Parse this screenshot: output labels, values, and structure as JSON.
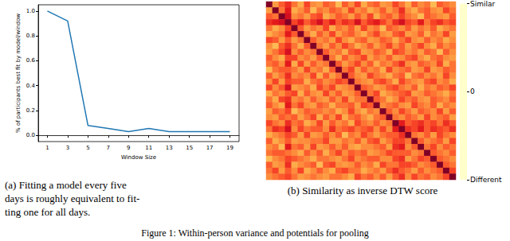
{
  "chart_data": [
    {
      "type": "line",
      "x": [
        1,
        3,
        5,
        7,
        9,
        11,
        13,
        15,
        17,
        19
      ],
      "values": [
        1.0,
        0.92,
        0.08,
        0.055,
        0.03,
        0.055,
        0.03,
        0.03,
        0.03,
        0.03
      ],
      "color": "#1f77b4",
      "xlim": [
        0.1,
        19.9
      ],
      "ylim": [
        -0.05,
        1.05
      ],
      "xticks": [
        1,
        3,
        5,
        7,
        9,
        11,
        13,
        15,
        17,
        19
      ],
      "yticks": [
        {
          "value": 0,
          "label": "0.0"
        },
        {
          "value": 0.2,
          "label": "0.2"
        },
        {
          "value": 0.4,
          "label": "0.4"
        },
        {
          "value": 0.6,
          "label": "0.6"
        },
        {
          "value": 0.8,
          "label": "0.8"
        },
        {
          "value": 1,
          "label": "1.0"
        }
      ],
      "x_label": "Window Size",
      "y_label": "% of participants best fit by model/window",
      "grid": false,
      "caption": [
        "(a) Fitting a model every five",
        "days is roughly equivalent to fit-",
        "ting one for all days."
      ]
    },
    {
      "type": "heatmap",
      "tick_labels": false,
      "colorbar_lim": [
        -1,
        1
      ],
      "colorbar_ticks": [
        {
          "value": 1,
          "label": "Similar"
        },
        0,
        {
          "value": -1,
          "label": "Different"
        }
      ],
      "caption": [
        "(b) Similarity as inverse DTW score"
      ],
      "cells": [
        [
          1,
          -0.1,
          0.2,
          0.4,
          0.1,
          -0.2,
          0.3,
          0,
          -0.1,
          0.2,
          0.1,
          -0.3,
          0.2,
          0,
          0.3,
          -0.2,
          0.1,
          0.2,
          -0.1,
          0,
          0.3,
          0.1,
          -0.2,
          0.2,
          0,
          0.1,
          -0.3,
          0.2,
          0.1,
          0
        ],
        [
          -0.1,
          1,
          0.1,
          0.5,
          -0.2,
          0,
          0.2,
          -0.3,
          0.1,
          0,
          0.2,
          0.1,
          -0.1,
          0.3,
          0,
          0.1,
          -0.2,
          0,
          0.2,
          -0.1,
          0.1,
          0.4,
          0,
          -0.2,
          0.1,
          0.2,
          0,
          -0.1,
          0.3,
          0.1
        ],
        [
          0.2,
          0.1,
          1,
          0.6,
          0,
          0.1,
          -0.1,
          0.2,
          0.3,
          -0.2,
          0,
          0.2,
          0.1,
          -0.1,
          0.2,
          0,
          0.3,
          -0.2,
          0.1,
          0.2,
          0,
          0.3,
          0.1,
          0,
          -0.3,
          0.2,
          0.1,
          0,
          -0.1,
          0.2
        ],
        [
          0.4,
          0.5,
          0.6,
          1,
          0.3,
          0.5,
          0.2,
          0.4,
          0.6,
          0.3,
          0.5,
          0.2,
          0.4,
          0.3,
          0.6,
          0.2,
          0.4,
          0.5,
          0.3,
          0.1,
          0.4,
          0.6,
          0.3,
          0.2,
          0.5,
          0.1,
          0.3,
          0.4,
          0.2,
          0.3
        ],
        [
          0.1,
          -0.2,
          0,
          0.3,
          1,
          0.2,
          -0.1,
          0.1,
          0,
          0.3,
          -0.2,
          0.1,
          0,
          0.2,
          -0.1,
          0.3,
          0,
          0.1,
          -0.3,
          0.2,
          0.1,
          0,
          0.2,
          -0.1,
          0.1,
          0,
          0.2,
          -0.2,
          0,
          0.1
        ],
        [
          -0.2,
          0,
          0.1,
          0.5,
          0.2,
          1,
          0.1,
          -0.2,
          0.2,
          0,
          0.3,
          -0.1,
          0.1,
          0.2,
          0,
          -0.2,
          0.1,
          0.3,
          0,
          -0.1,
          0.2,
          0.3,
          -0.1,
          0,
          0.2,
          -0.2,
          0.1,
          0,
          0.3,
          -0.1
        ],
        [
          0.3,
          0.2,
          -0.1,
          0.2,
          -0.1,
          0.1,
          1,
          0.2,
          0,
          0.1,
          -0.1,
          0.3,
          0,
          -0.2,
          0.1,
          0.2,
          -0.1,
          0,
          0.2,
          0.1,
          -0.2,
          0.1,
          0.3,
          0,
          -0.1,
          0.2,
          0,
          0.1,
          -0.2,
          0
        ],
        [
          0,
          -0.3,
          0.2,
          0.4,
          0.1,
          -0.2,
          0.2,
          1,
          0.1,
          -0.1,
          0.2,
          0,
          0.3,
          0.1,
          -0.2,
          0,
          0.2,
          -0.1,
          0.1,
          0.3,
          0,
          0.2,
          -0.1,
          0.1,
          0.3,
          0,
          -0.2,
          0.2,
          0,
          0.1
        ],
        [
          -0.1,
          0.1,
          0.3,
          0.6,
          0,
          0.2,
          0,
          0.1,
          1,
          0.2,
          0,
          0.1,
          -0.2,
          0.2,
          0.3,
          -0.1,
          0,
          0.2,
          0.1,
          -0.2,
          0.3,
          0.2,
          0,
          0.1,
          -0.1,
          0.2,
          0.1,
          -0.3,
          0.2,
          0
        ],
        [
          0.2,
          0,
          -0.2,
          0.3,
          0.3,
          0,
          0.1,
          -0.1,
          0.2,
          1,
          0.1,
          -0.2,
          0.2,
          0,
          0.1,
          0.3,
          -0.1,
          0.1,
          0,
          0.2,
          -0.1,
          0,
          0.2,
          0.3,
          0,
          -0.2,
          0.1,
          0.2,
          0,
          -0.1
        ],
        [
          0.1,
          0.2,
          0,
          0.5,
          -0.2,
          0.3,
          -0.1,
          0.2,
          0,
          0.1,
          1,
          0.2,
          -0.1,
          0.1,
          0.3,
          0,
          0.2,
          -0.2,
          0.1,
          0,
          0.2,
          0.4,
          0,
          -0.1,
          0.2,
          0.1,
          0,
          0.3,
          -0.2,
          0.1
        ],
        [
          -0.3,
          0.1,
          0.2,
          0.2,
          0.1,
          -0.1,
          0.3,
          0,
          0.1,
          -0.2,
          0.2,
          1,
          0.1,
          0.3,
          -0.1,
          0.2,
          0,
          0.1,
          -0.2,
          0.3,
          0,
          0.1,
          0.2,
          -0.1,
          0,
          0.3,
          -0.1,
          0,
          0.2,
          0.1
        ],
        [
          0.2,
          -0.1,
          0.1,
          0.4,
          0,
          0.1,
          0,
          0.3,
          -0.2,
          0.2,
          -0.1,
          0.1,
          1,
          0.2,
          0,
          -0.1,
          0.3,
          0.1,
          0,
          -0.2,
          0.1,
          0.2,
          -0.3,
          0.1,
          0.2,
          0,
          0.1,
          -0.1,
          0.3,
          0
        ],
        [
          0,
          0.3,
          -0.1,
          0.3,
          0.2,
          0.2,
          -0.2,
          0.1,
          0.2,
          0,
          0.1,
          0.3,
          0.2,
          1,
          0.1,
          0,
          -0.1,
          0.2,
          0.3,
          0.1,
          -0.2,
          0.3,
          0.1,
          0,
          -0.1,
          0.2,
          0.3,
          0,
          0.1,
          -0.2
        ],
        [
          0.3,
          0,
          0.2,
          0.6,
          -0.1,
          0,
          0.1,
          -0.2,
          0.3,
          0.1,
          0.3,
          -0.1,
          0,
          0.1,
          1,
          0.2,
          0.1,
          -0.1,
          0,
          0.2,
          0.3,
          0.1,
          0,
          0.2,
          -0.2,
          0.1,
          0,
          0.2,
          0.1,
          0.3
        ],
        [
          -0.2,
          0.1,
          0,
          0.2,
          0.3,
          -0.2,
          0.2,
          0,
          -0.1,
          0.3,
          0,
          0.2,
          -0.1,
          0,
          0.2,
          1,
          0.1,
          0.3,
          -0.2,
          0,
          0.1,
          0.2,
          0.3,
          -0.1,
          0,
          0.2,
          0.1,
          0,
          -0.2,
          0.1
        ],
        [
          0.1,
          -0.2,
          0.3,
          0.4,
          0,
          0.1,
          -0.1,
          0.2,
          0,
          -0.1,
          0.2,
          0,
          0.3,
          -0.1,
          0.1,
          0.1,
          1,
          0.2,
          0.1,
          -0.2,
          0,
          0.3,
          0.1,
          0.2,
          0,
          -0.1,
          0.2,
          0.1,
          0,
          0.2
        ],
        [
          0.2,
          0,
          -0.2,
          0.5,
          0.1,
          0.3,
          0,
          -0.1,
          0.2,
          0.1,
          -0.2,
          0.1,
          0.1,
          0.2,
          -0.1,
          0.3,
          0.2,
          1,
          0,
          0.1,
          0.2,
          0,
          -0.1,
          0.3,
          0.1,
          0,
          0.2,
          -0.2,
          0.1,
          0
        ],
        [
          -0.1,
          0.2,
          0.1,
          0.3,
          -0.3,
          0,
          0.2,
          0.1,
          0.1,
          0,
          0.1,
          -0.2,
          0,
          0.3,
          0,
          -0.2,
          0.1,
          0,
          1,
          0.2,
          0,
          0.3,
          0.1,
          -0.1,
          0.2,
          0.1,
          0,
          0.3,
          -0.1,
          0.2
        ],
        [
          0,
          -0.1,
          0.2,
          0.1,
          0.2,
          -0.1,
          0.1,
          0.3,
          -0.2,
          0.2,
          0,
          0.3,
          -0.2,
          0.1,
          0.2,
          0,
          -0.2,
          0.1,
          0.2,
          1,
          0.1,
          0,
          0.2,
          0.1,
          -0.1,
          0.3,
          0,
          0.1,
          0.2,
          -0.1
        ],
        [
          0.3,
          0.1,
          0,
          0.4,
          0.1,
          0.2,
          -0.2,
          0,
          0.3,
          -0.1,
          0.2,
          0,
          0.1,
          -0.2,
          0.3,
          0.1,
          0,
          0.2,
          0,
          0.1,
          1,
          0.5,
          0.2,
          0.3,
          0.4,
          0.2,
          0.3,
          0.1,
          0.4,
          0.2
        ],
        [
          0.1,
          0.4,
          0.3,
          0.6,
          0,
          0.3,
          0.1,
          0.2,
          0.2,
          0,
          0.4,
          0.1,
          0.2,
          0.3,
          0.1,
          0.2,
          0.3,
          0,
          0.3,
          0,
          0.5,
          1,
          0.4,
          0.3,
          0.5,
          0.2,
          0.4,
          0.3,
          0.2,
          0.4
        ],
        [
          -0.2,
          0,
          0.1,
          0.3,
          0.2,
          -0.1,
          0.3,
          -0.1,
          0,
          0.2,
          0,
          0.2,
          -0.3,
          0.1,
          0,
          0.3,
          0.1,
          -0.1,
          0.1,
          0.2,
          0.2,
          0.4,
          1,
          0.1,
          0,
          0.2,
          -0.1,
          0.3,
          0.1,
          0
        ],
        [
          0.2,
          -0.2,
          0,
          0.2,
          -0.1,
          0,
          0,
          0.1,
          0.1,
          0.3,
          -0.1,
          -0.1,
          0.1,
          0,
          0.2,
          -0.1,
          0.2,
          0.3,
          -0.1,
          0.1,
          0.3,
          0.3,
          0.1,
          1,
          0.2,
          0,
          0.1,
          0.2,
          -0.1,
          0.3
        ],
        [
          0,
          0.1,
          -0.3,
          0.5,
          0.1,
          0.2,
          -0.1,
          0.3,
          -0.1,
          0,
          0.2,
          0,
          0.2,
          -0.1,
          -0.2,
          0,
          0,
          0.1,
          0.2,
          -0.1,
          0.4,
          0.5,
          0,
          0.2,
          1,
          0.1,
          0.3,
          0,
          0.2,
          0.1
        ],
        [
          0.1,
          0.2,
          0.2,
          0.1,
          0,
          -0.2,
          0.2,
          0,
          0.2,
          -0.2,
          0.1,
          0.3,
          0,
          0.2,
          0.1,
          0.2,
          -0.1,
          0,
          0.1,
          0.3,
          0.2,
          0.2,
          0.2,
          0,
          0.1,
          1,
          0.2,
          0.1,
          0,
          0.2
        ],
        [
          -0.3,
          0,
          0.1,
          0.3,
          0.2,
          0.1,
          0,
          -0.2,
          0.1,
          0.1,
          0,
          -0.1,
          0.1,
          0.3,
          0,
          0.1,
          0.2,
          0.2,
          0,
          0,
          0.3,
          0.4,
          -0.1,
          0.1,
          0.3,
          0.2,
          1,
          0.2,
          0.1,
          0
        ],
        [
          0.2,
          -0.1,
          0,
          0.4,
          -0.2,
          0,
          0.1,
          0.2,
          -0.3,
          0.2,
          0.3,
          0,
          -0.1,
          0,
          0.2,
          0,
          0.1,
          -0.2,
          0.3,
          0.1,
          0.1,
          0.3,
          0.3,
          0.2,
          0,
          0.1,
          0.2,
          1,
          0.2,
          0.1
        ],
        [
          0.1,
          0.3,
          -0.1,
          0.2,
          0,
          0.3,
          -0.2,
          0,
          0.2,
          0,
          -0.2,
          0.2,
          0.3,
          0.1,
          0.1,
          -0.2,
          0,
          0.1,
          -0.1,
          0.2,
          0.4,
          0.2,
          0.1,
          -0.1,
          0.2,
          0,
          0.1,
          0.2,
          1,
          0.3
        ],
        [
          0,
          0.1,
          0.2,
          0.3,
          0.1,
          -0.1,
          0,
          0.1,
          0,
          -0.1,
          0.1,
          0.1,
          0,
          -0.2,
          0.3,
          0.1,
          0.2,
          0,
          0.2,
          -0.1,
          0.2,
          0.4,
          0,
          0.3,
          0.1,
          0.2,
          0,
          0.1,
          0.3,
          1
        ]
      ]
    }
  ],
  "figure_caption": "Figure 1: Within-person variance and potentials for pooling"
}
